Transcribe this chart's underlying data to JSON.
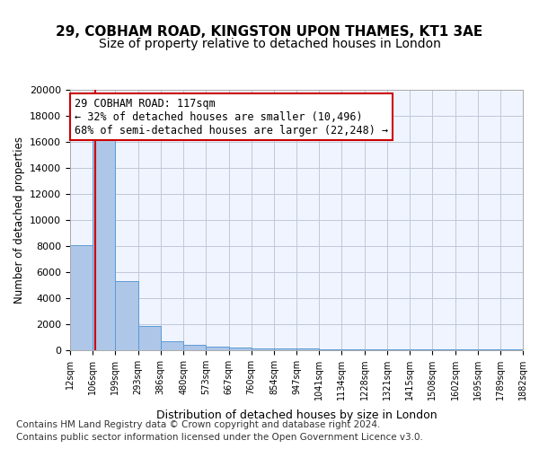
{
  "title1": "29, COBHAM ROAD, KINGSTON UPON THAMES, KT1 3AE",
  "title2": "Size of property relative to detached houses in London",
  "xlabel": "Distribution of detached houses by size in London",
  "ylabel": "Number of detached properties",
  "annotation_title": "29 COBHAM ROAD: 117sqm",
  "annotation_line1": "← 32% of detached houses are smaller (10,496)",
  "annotation_line2": "68% of semi-detached houses are larger (22,248) →",
  "footer1": "Contains HM Land Registry data © Crown copyright and database right 2024.",
  "footer2": "Contains public sector information licensed under the Open Government Licence v3.0.",
  "property_size": 117,
  "bin_edges": [
    12,
    106,
    199,
    293,
    386,
    480,
    573,
    667,
    760,
    854,
    947,
    1041,
    1134,
    1228,
    1321,
    1415,
    1508,
    1602,
    1695,
    1789,
    1882
  ],
  "bin_labels": [
    "12sqm",
    "106sqm",
    "199sqm",
    "293sqm",
    "386sqm",
    "480sqm",
    "573sqm",
    "667sqm",
    "760sqm",
    "854sqm",
    "947sqm",
    "1041sqm",
    "1134sqm",
    "1228sqm",
    "1321sqm",
    "1415sqm",
    "1508sqm",
    "1602sqm",
    "1695sqm",
    "1789sqm",
    "1882sqm"
  ],
  "bar_heights": [
    8100,
    16700,
    5300,
    1850,
    700,
    380,
    280,
    200,
    160,
    130,
    110,
    90,
    80,
    75,
    60,
    55,
    50,
    45,
    40,
    35
  ],
  "bar_color": "#aec6e8",
  "bar_edge_color": "#5b9bd5",
  "line_color": "#cc0000",
  "annotation_box_color": "#cc0000",
  "background_color": "#f0f4ff",
  "ylim": [
    0,
    20000
  ],
  "yticks": [
    0,
    2000,
    4000,
    6000,
    8000,
    10000,
    12000,
    14000,
    16000,
    18000,
    20000
  ],
  "grid_color": "#c0c8d8",
  "title1_fontsize": 11,
  "title2_fontsize": 10,
  "annotation_fontsize": 8.5,
  "footer_fontsize": 7.5
}
